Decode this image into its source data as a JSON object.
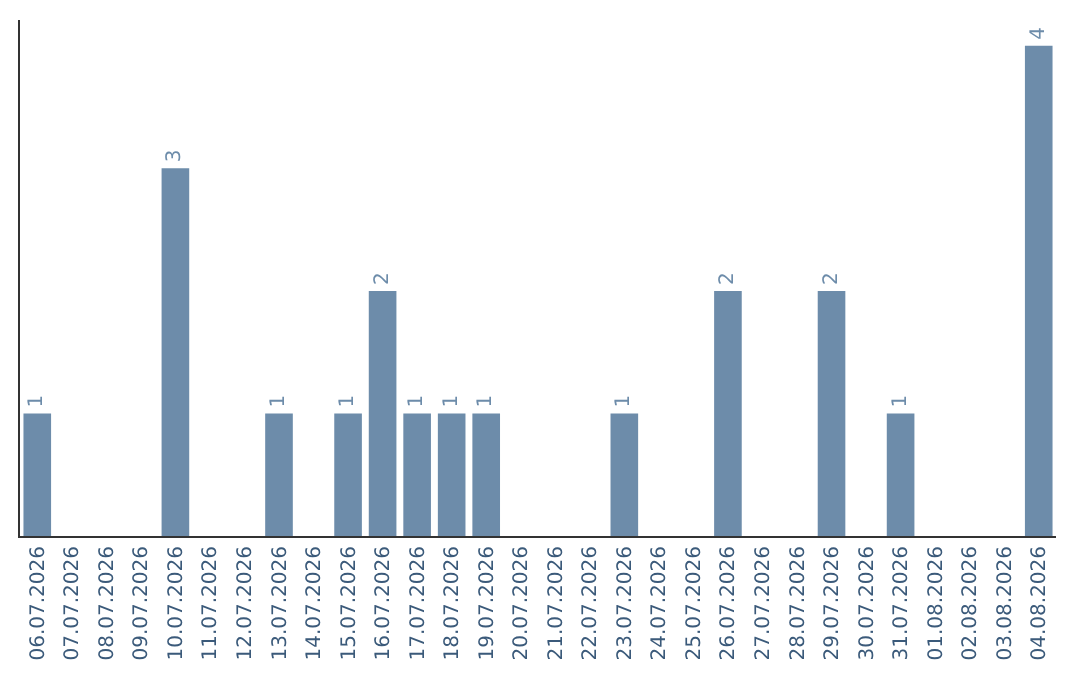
{
  "chart_data": {
    "type": "bar",
    "categories": [
      "06.07.2026",
      "07.07.2026",
      "08.07.2026",
      "09.07.2026",
      "10.07.2026",
      "11.07.2026",
      "12.07.2026",
      "13.07.2026",
      "14.07.2026",
      "15.07.2026",
      "16.07.2026",
      "17.07.2026",
      "18.07.2026",
      "19.07.2026",
      "20.07.2026",
      "21.07.2026",
      "22.07.2026",
      "23.07.2026",
      "24.07.2026",
      "25.07.2026",
      "26.07.2026",
      "27.07.2026",
      "28.07.2026",
      "29.07.2026",
      "30.07.2026",
      "31.07.2026",
      "01.08.2026",
      "02.08.2026",
      "03.08.2026",
      "04.08.2026"
    ],
    "values": [
      1,
      0,
      0,
      0,
      3,
      0,
      0,
      1,
      0,
      1,
      2,
      1,
      1,
      1,
      0,
      0,
      0,
      1,
      0,
      0,
      2,
      0,
      0,
      2,
      0,
      1,
      0,
      0,
      0,
      4
    ],
    "value_labels": [
      "1",
      null,
      null,
      null,
      "3",
      null,
      null,
      "1",
      null,
      "1",
      "2",
      "1",
      "1",
      "1",
      null,
      null,
      null,
      "1",
      null,
      null,
      "2",
      null,
      null,
      "2",
      null,
      "1",
      null,
      null,
      null,
      "4"
    ],
    "color": "#6d8caa",
    "tick_labels": "x",
    "legend": false
  }
}
